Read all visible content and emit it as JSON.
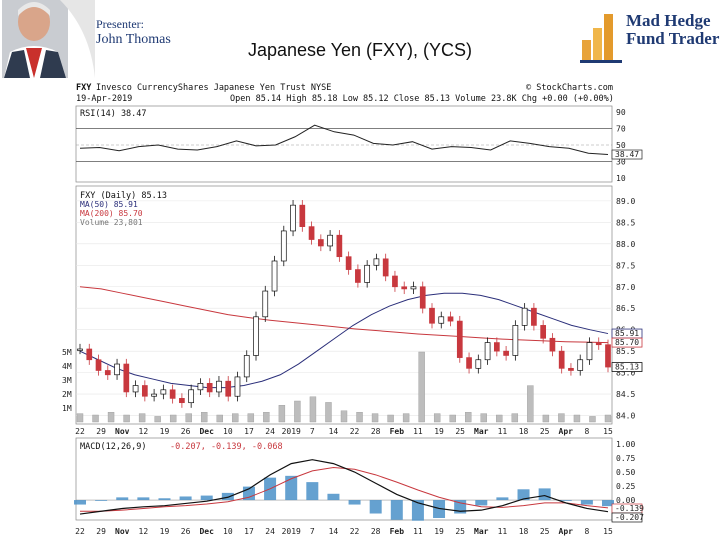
{
  "slide": {
    "presenter_label": "Presenter:",
    "presenter_name": "John Thomas",
    "title": "Japanese Yen (FXY), (YCS)",
    "logo_line1": "Mad Hedge",
    "logo_line2": "Fund Trader"
  },
  "chart_data": {
    "type": "line",
    "symbol": "FXY",
    "description": "Invesco CurrencyShares Japanese Yen Trust NYSE",
    "credit": "© StockCharts.com",
    "date": "19-Apr-2019",
    "quote": "Open 85.14 High 85.18 Low 85.12 Close 85.13 Volume 23.8K Chg +0.00 (+0.00%)",
    "x_ticks": [
      "22",
      "29",
      "Nov",
      "12",
      "19",
      "26",
      "Dec",
      "10",
      "17",
      "24",
      "2019",
      "7",
      "14",
      "22",
      "28",
      "Feb",
      "11",
      "19",
      "25",
      "Mar",
      "11",
      "18",
      "25",
      "Apr",
      "8",
      "15"
    ],
    "rsi_panel": {
      "label": "RSI(14) 38.47",
      "ylim": [
        10,
        90
      ],
      "ticks": [
        "90",
        "70",
        "50",
        "30",
        "10"
      ],
      "current": 38.47,
      "current_label": "38.47",
      "values": [
        46,
        47,
        43,
        48,
        50,
        45,
        44,
        48,
        55,
        49,
        50,
        60,
        74,
        66,
        62,
        52,
        50,
        54,
        45,
        48,
        47,
        44,
        55,
        52,
        48,
        46,
        40,
        38.47
      ]
    },
    "price_panel": {
      "label": "FXY (Daily) 85.13",
      "ylim": [
        83.85,
        89.3
      ],
      "ticks": [
        "89.0",
        "88.5",
        "88.0",
        "87.5",
        "87.0",
        "86.5",
        "86.0",
        "85.5",
        "85.0",
        "84.5",
        "84.0"
      ],
      "ma50_label": "MA(50) 85.91",
      "ma200_label": "MA(200) 85.70",
      "volume_label": "Volume 23,801",
      "vol_ticks": [
        "5M",
        "4M",
        "3M",
        "2M",
        "1M"
      ],
      "flags": [
        {
          "label": "85.91",
          "color": "#2b2f7a",
          "value": 85.91
        },
        {
          "label": "85.70",
          "color": "#c8383e",
          "value": 85.7
        },
        {
          "label": "85.13",
          "color": "#111111",
          "value": 85.13
        }
      ],
      "close": [
        85.55,
        85.3,
        85.05,
        84.95,
        85.2,
        84.55,
        84.7,
        84.45,
        84.5,
        84.6,
        84.4,
        84.3,
        84.6,
        84.75,
        84.55,
        84.8,
        84.45,
        84.9,
        85.4,
        86.3,
        86.9,
        87.6,
        88.3,
        88.9,
        88.4,
        88.1,
        87.95,
        88.2,
        87.7,
        87.4,
        87.1,
        87.5,
        87.65,
        87.25,
        87.0,
        86.95,
        87.0,
        86.5,
        86.15,
        86.3,
        86.2,
        85.35,
        85.1,
        85.3,
        85.7,
        85.5,
        85.4,
        86.1,
        86.5,
        86.1,
        85.8,
        85.5,
        85.1,
        85.05,
        85.3,
        85.7,
        85.65,
        85.13
      ],
      "ma50": [
        85.5,
        85.3,
        85.1,
        84.95,
        84.85,
        84.75,
        84.7,
        84.65,
        84.65,
        84.7,
        84.8,
        84.95,
        85.2,
        85.5,
        85.8,
        86.1,
        86.35,
        86.55,
        86.7,
        86.8,
        86.85,
        86.85,
        86.8,
        86.7,
        86.55,
        86.4,
        86.25,
        86.1,
        86.0,
        85.91
      ],
      "ma200": [
        87.0,
        86.95,
        86.85,
        86.75,
        86.65,
        86.55,
        86.45,
        86.35,
        86.28,
        86.22,
        86.17,
        86.12,
        86.07,
        86.02,
        85.98,
        85.94,
        85.9,
        85.87,
        85.84,
        85.81,
        85.78,
        85.76,
        85.74,
        85.72,
        85.71,
        85.7
      ],
      "volume_m": [
        0.6,
        0.5,
        0.7,
        0.5,
        0.6,
        0.4,
        0.5,
        0.6,
        0.7,
        0.5,
        0.6,
        0.6,
        0.7,
        1.2,
        1.5,
        1.8,
        1.4,
        0.8,
        0.7,
        0.6,
        0.5,
        0.6,
        5.0,
        0.6,
        0.5,
        0.7,
        0.6,
        0.5,
        0.6,
        2.6,
        0.5,
        0.6,
        0.5,
        0.4,
        0.5
      ]
    },
    "macd_panel": {
      "label": "MACD(12,26,9)",
      "values_label": "-0.207, -0.139, -0.068",
      "ylim": [
        -0.32,
        1.0
      ],
      "ticks": [
        "1.00",
        "0.75",
        "0.50",
        "0.25",
        "0.00"
      ],
      "macd_flag": "-0.207",
      "signal_flag": "-0.139",
      "macd": [
        -0.25,
        -0.2,
        -0.15,
        -0.12,
        -0.1,
        -0.06,
        -0.02,
        0.05,
        0.2,
        0.45,
        0.65,
        0.72,
        0.65,
        0.5,
        0.3,
        0.1,
        -0.05,
        -0.15,
        -0.2,
        -0.18,
        -0.1,
        0.02,
        0.08,
        -0.05,
        -0.15,
        -0.207
      ],
      "signal": [
        -0.2,
        -0.2,
        -0.18,
        -0.15,
        -0.12,
        -0.1,
        -0.07,
        -0.03,
        0.05,
        0.2,
        0.38,
        0.52,
        0.58,
        0.55,
        0.45,
        0.32,
        0.18,
        0.05,
        -0.05,
        -0.12,
        -0.13,
        -0.1,
        -0.05,
        -0.05,
        -0.1,
        -0.139
      ]
    }
  }
}
